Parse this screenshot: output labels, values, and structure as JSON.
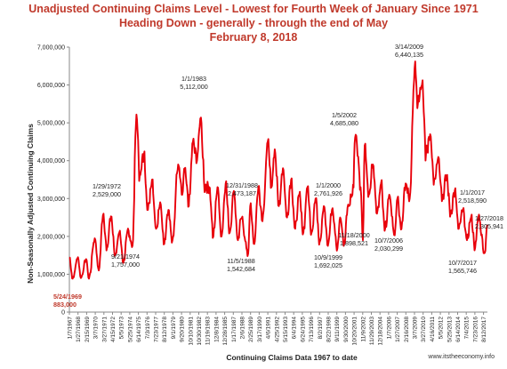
{
  "chart_data": {
    "type": "line",
    "title": [
      "Unadjusted Continuing Claims Level - Lowest for Fourth Week of January Since 1971",
      "Heading Down - generally - through the end of May",
      "February 8, 2018"
    ],
    "xlabel": "Continuing Claims Data 1967 to date",
    "ylabel": "Non-Seasonally Adjusted Continuing Claims",
    "ylim": [
      0,
      7000000
    ],
    "yticks": [
      "0",
      "1,000,000",
      "2,000,000",
      "3,000,000",
      "4,000,000",
      "5,000,000",
      "6,000,000",
      "7,000,000"
    ],
    "xrange": [
      1967.0,
      2018.1
    ],
    "xtick_labels": [
      "1/7/1967",
      "1/27/1968",
      "2/15/1969",
      "3/7/1970",
      "3/27/1971",
      "4/15/1972",
      "5/5/1973",
      "5/25/1974",
      "6/14/1975",
      "7/3/1976",
      "7/23/1977",
      "8/12/1978",
      "9/1/1979",
      "9/20/1980",
      "10/10/1981",
      "10/30/1982",
      "11/19/1983",
      "12/8/1984",
      "12/28/1985",
      "1/17/1987",
      "2/6/1988",
      "2/25/1989",
      "3/17/1990",
      "4/6/1991",
      "4/25/1992",
      "5/15/1993",
      "6/4/1994",
      "6/24/1995",
      "7/13/1996",
      "8/2/1997",
      "8/22/1998",
      "9/11/1999",
      "9/30/2000",
      "10/20/2001",
      "11/9/2002",
      "11/29/2003",
      "12/18/2004",
      "1/7/2006",
      "1/27/2007",
      "2/16/2008",
      "3/7/2009",
      "3/27/2010",
      "4/16/2011",
      "5/5/2012",
      "5/25/2013",
      "6/14/2014",
      "7/4/2015",
      "7/23/2016",
      "8/12/2017"
    ],
    "grid": false,
    "line_color": "#e8000b",
    "series": [
      {
        "anchors": [
          [
            1967.0,
            1450000
          ],
          [
            1967.4,
            883000
          ],
          [
            1968.05,
            1450000
          ],
          [
            1968.4,
            900000
          ],
          [
            1969.05,
            1400000
          ],
          [
            1969.39,
            883000
          ],
          [
            1970.1,
            1950000
          ],
          [
            1970.6,
            1100000
          ],
          [
            1971.1,
            2550000
          ],
          [
            1971.6,
            1700000
          ],
          [
            1972.08,
            2529000
          ],
          [
            1972.6,
            1500000
          ],
          [
            1973.1,
            2100000
          ],
          [
            1973.6,
            1300000
          ],
          [
            1974.1,
            2150000
          ],
          [
            1974.72,
            1757000
          ],
          [
            1975.2,
            5220000
          ],
          [
            1975.6,
            3600000
          ],
          [
            1976.1,
            4150000
          ],
          [
            1976.6,
            2700000
          ],
          [
            1977.1,
            3500000
          ],
          [
            1977.6,
            2200000
          ],
          [
            1978.1,
            2900000
          ],
          [
            1978.6,
            1800000
          ],
          [
            1979.1,
            2700000
          ],
          [
            1979.6,
            1900000
          ],
          [
            1980.3,
            3900000
          ],
          [
            1980.8,
            3100000
          ],
          [
            1981.1,
            3800000
          ],
          [
            1981.6,
            2800000
          ],
          [
            1982.1,
            4500000
          ],
          [
            1982.6,
            4000000
          ],
          [
            1983.0,
            5112000
          ],
          [
            1983.6,
            3300000
          ],
          [
            1984.1,
            3300000
          ],
          [
            1984.6,
            2000000
          ],
          [
            1985.1,
            3300000
          ],
          [
            1985.6,
            2000000
          ],
          [
            1986.1,
            3400000
          ],
          [
            1986.6,
            2100000
          ],
          [
            1987.1,
            3200000
          ],
          [
            1987.6,
            1900000
          ],
          [
            1988.0,
            2473187
          ],
          [
            1988.85,
            1542684
          ],
          [
            1989.1,
            2800000
          ],
          [
            1989.6,
            1800000
          ],
          [
            1990.1,
            3300000
          ],
          [
            1990.6,
            2400000
          ],
          [
            1991.25,
            4500000
          ],
          [
            1991.7,
            3300000
          ],
          [
            1992.1,
            4300000
          ],
          [
            1992.6,
            2800000
          ],
          [
            1993.1,
            3800000
          ],
          [
            1993.6,
            2500000
          ],
          [
            1994.1,
            3500000
          ],
          [
            1994.6,
            2200000
          ],
          [
            1995.1,
            3100000
          ],
          [
            1995.6,
            2100000
          ],
          [
            1996.1,
            3300000
          ],
          [
            1996.6,
            2100000
          ],
          [
            1997.1,
            3000000
          ],
          [
            1997.6,
            1850000
          ],
          [
            1998.1,
            2800000
          ],
          [
            1998.6,
            1750000
          ],
          [
            1999.1,
            2700000
          ],
          [
            1999.77,
            1692025
          ],
          [
            2000.1,
            2500000
          ],
          [
            2000.6,
            1800000
          ],
          [
            2001.0,
            2761926
          ],
          [
            2001.6,
            3100000
          ],
          [
            2002.0,
            4685080
          ],
          [
            2002.6,
            3300000
          ],
          [
            2002.88,
            1898521
          ],
          [
            2003.1,
            4400000
          ],
          [
            2003.6,
            3100000
          ],
          [
            2004.1,
            3900000
          ],
          [
            2004.6,
            2600000
          ],
          [
            2005.1,
            3400000
          ],
          [
            2005.6,
            2200000
          ],
          [
            2006.1,
            3100000
          ],
          [
            2006.77,
            2030299
          ],
          [
            2007.1,
            3000000
          ],
          [
            2007.6,
            2200000
          ],
          [
            2008.1,
            3400000
          ],
          [
            2008.6,
            3000000
          ],
          [
            2009.2,
            6440135
          ],
          [
            2009.6,
            5500000
          ],
          [
            2010.1,
            6000000
          ],
          [
            2010.6,
            4200000
          ],
          [
            2011.1,
            4700000
          ],
          [
            2011.6,
            3500000
          ],
          [
            2012.1,
            4100000
          ],
          [
            2012.6,
            3000000
          ],
          [
            2013.1,
            3600000
          ],
          [
            2013.6,
            2600000
          ],
          [
            2014.1,
            3200000
          ],
          [
            2014.6,
            2200000
          ],
          [
            2015.1,
            2700000
          ],
          [
            2015.6,
            1900000
          ],
          [
            2016.1,
            2500000
          ],
          [
            2016.6,
            1700000
          ],
          [
            2017.0,
            2518590
          ],
          [
            2017.77,
            1565746
          ],
          [
            2018.07,
            2305941
          ]
        ]
      }
    ],
    "annotations": [
      {
        "x": 1969.39,
        "y": 883000,
        "lines": [
          "5/24/1969",
          "883,000"
        ],
        "color": "#c0392b"
      },
      {
        "x": 1972.08,
        "y": 2529000,
        "lines": [
          "1/29/1972",
          "2,529,000"
        ]
      },
      {
        "x": 1974.72,
        "y": 1757000,
        "lines": [
          "9/21/1974",
          "1,757,000"
        ]
      },
      {
        "x": 1983.0,
        "y": 5112000,
        "lines": [
          "1/1/1983",
          "5,112,000"
        ]
      },
      {
        "x": 1988.0,
        "y": 2473187,
        "lines": [
          "12/31/1988",
          "2,473,187"
        ]
      },
      {
        "x": 1988.85,
        "y": 1542684,
        "lines": [
          "11/5/1988",
          "1,542,684"
        ]
      },
      {
        "x": 1999.77,
        "y": 1692025,
        "lines": [
          "10/9/1999",
          "1,692,025"
        ]
      },
      {
        "x": 2001.0,
        "y": 2761926,
        "lines": [
          "1/1/2000",
          "2,761,926"
        ]
      },
      {
        "x": 2002.0,
        "y": 4685080,
        "lines": [
          "1/5/2002",
          "4,685,080"
        ]
      },
      {
        "x": 2002.88,
        "y": 1898521,
        "lines": [
          "11/18/2000",
          "1,898,521"
        ]
      },
      {
        "x": 2006.77,
        "y": 2030299,
        "lines": [
          "10/7/2006",
          "2,030,299"
        ]
      },
      {
        "x": 2009.2,
        "y": 6440135,
        "lines": [
          "3/14/2009",
          "6,440,135"
        ]
      },
      {
        "x": 2017.0,
        "y": 2518590,
        "lines": [
          "1/1/2017",
          "2,518,590"
        ]
      },
      {
        "x": 2017.77,
        "y": 1565746,
        "lines": [
          "10/7/2017",
          "1,565,746"
        ]
      },
      {
        "x": 2018.07,
        "y": 2305941,
        "lines": [
          "1/27/2018",
          "2,305,941"
        ]
      }
    ]
  },
  "source": "www.itstheeconomy.info"
}
